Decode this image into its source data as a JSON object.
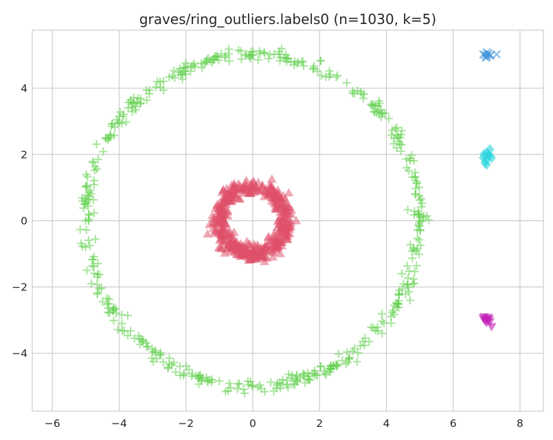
{
  "chart_data": {
    "type": "scatter",
    "title": "graves/ring_outliers.labels0 (n=1030, k=5)",
    "xlabel": "",
    "ylabel": "",
    "xlim": [
      -6.6,
      8.7
    ],
    "ylim": [
      -5.75,
      5.75
    ],
    "xticks": [
      -6,
      -4,
      -2,
      0,
      2,
      4,
      6,
      8
    ],
    "yticks": [
      -4,
      -2,
      0,
      2,
      4
    ],
    "xtick_labels": [
      "−6",
      "−4",
      "−2",
      "0",
      "2",
      "4",
      "6",
      "8"
    ],
    "ytick_labels": [
      "−4",
      "−2",
      "0",
      "2",
      "4"
    ],
    "grid": true,
    "legend": "none",
    "series": [
      {
        "cluster": 0,
        "marker": "plus",
        "color": "#5fcf4a",
        "shape": "ring",
        "center": [
          0,
          0
        ],
        "radius": 5.0,
        "count": 500,
        "samples": [
          [
            5.0,
            0.0
          ],
          [
            4.33,
            2.5
          ],
          [
            2.5,
            4.33
          ],
          [
            0.0,
            5.0
          ],
          [
            -2.5,
            4.33
          ],
          [
            -4.33,
            2.5
          ],
          [
            -5.0,
            0.0
          ],
          [
            -4.33,
            -2.5
          ],
          [
            -2.5,
            -4.33
          ],
          [
            0.0,
            -5.0
          ],
          [
            2.5,
            -4.33
          ],
          [
            4.33,
            -2.5
          ]
        ]
      },
      {
        "cluster": 1,
        "marker": "triangle-up",
        "color": "#e0506a",
        "shape": "ring",
        "center": [
          0,
          0
        ],
        "radius": 1.0,
        "count": 500,
        "samples": [
          [
            1.0,
            0.0
          ],
          [
            0.71,
            0.71
          ],
          [
            0.0,
            1.0
          ],
          [
            -0.71,
            0.71
          ],
          [
            -1.0,
            0.0
          ],
          [
            -0.71,
            -0.71
          ],
          [
            0.0,
            -1.0
          ],
          [
            0.71,
            -0.71
          ],
          [
            -1.35,
            -0.4
          ],
          [
            1.3,
            0.0
          ]
        ]
      },
      {
        "cluster": 2,
        "marker": "x",
        "color": "#3a8fd9",
        "count": 10,
        "points": [
          [
            6.95,
            5.0
          ],
          [
            7.0,
            4.95
          ],
          [
            7.05,
            5.05
          ],
          [
            6.9,
            5.02
          ],
          [
            7.1,
            4.98
          ],
          [
            7.0,
            5.08
          ],
          [
            6.98,
            4.92
          ],
          [
            7.12,
            5.0
          ],
          [
            7.3,
            5.02
          ],
          [
            7.02,
            5.0
          ]
        ]
      },
      {
        "cluster": 3,
        "marker": "diamond",
        "color": "#2ad6de",
        "count": 10,
        "points": [
          [
            6.9,
            1.9
          ],
          [
            7.0,
            1.85
          ],
          [
            7.05,
            2.0
          ],
          [
            7.1,
            2.15
          ],
          [
            6.95,
            1.75
          ],
          [
            7.0,
            2.05
          ],
          [
            6.92,
            2.0
          ],
          [
            7.08,
            1.95
          ],
          [
            7.0,
            1.7
          ],
          [
            7.15,
            1.9
          ]
        ]
      },
      {
        "cluster": 4,
        "marker": "triangle-down",
        "color": "#c21fb8",
        "count": 10,
        "points": [
          [
            6.9,
            -2.95
          ],
          [
            7.0,
            -3.0
          ],
          [
            7.05,
            -2.92
          ],
          [
            7.1,
            -3.05
          ],
          [
            6.95,
            -3.02
          ],
          [
            7.02,
            -2.98
          ],
          [
            7.15,
            -3.2
          ],
          [
            7.0,
            -3.08
          ],
          [
            6.92,
            -2.9
          ],
          [
            7.08,
            -2.97
          ]
        ]
      }
    ]
  }
}
